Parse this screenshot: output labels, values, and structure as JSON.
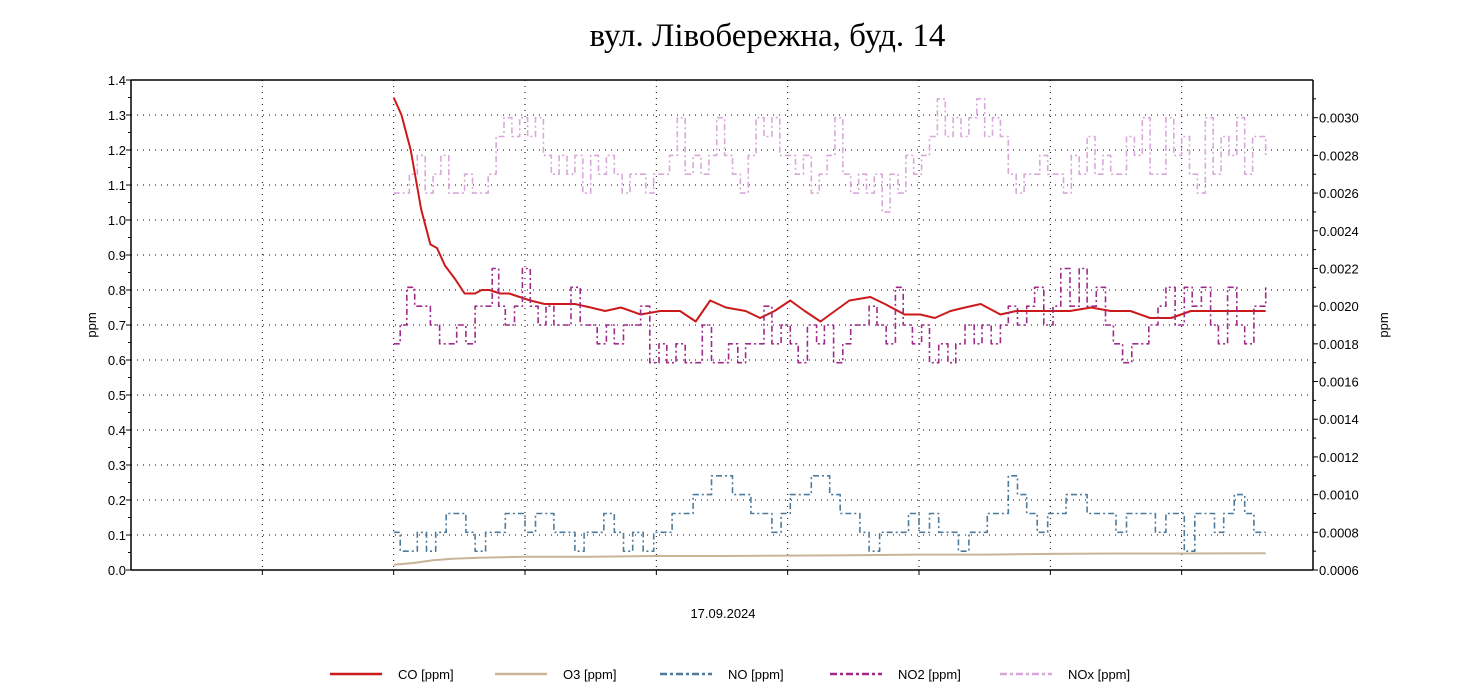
{
  "chart_data": {
    "type": "line",
    "title": "вул. Лівобережна, буд. 14",
    "xlabel": "17.09.2024",
    "ylabel_left": "ppm",
    "ylabel_right": "ppm",
    "x_units": "relative time (gridline intervals)",
    "xlim": [
      0,
      9
    ],
    "ylim_left": [
      0.0,
      1.4
    ],
    "ylim_right": [
      0.0006,
      0.0032
    ],
    "left_ticks": [
      "0.0",
      "0.1",
      "0.2",
      "0.3",
      "0.4",
      "0.5",
      "0.6",
      "0.7",
      "0.8",
      "0.9",
      "1.0",
      "1.1",
      "1.2",
      "1.3",
      "1.4"
    ],
    "right_ticks": [
      "0.0006",
      "0.0008",
      "0.0010",
      "0.0012",
      "0.0014",
      "0.0016",
      "0.0018",
      "0.0020",
      "0.0022",
      "0.0024",
      "0.0026",
      "0.0028",
      "0.0030"
    ],
    "grid": true,
    "legend_position": "bottom",
    "series": [
      {
        "name": "CO [ppm]",
        "axis": "left",
        "color": "#cc1a1a",
        "dash": "solid",
        "x": [
          2.0,
          2.06,
          2.13,
          2.21,
          2.28,
          2.33,
          2.39,
          2.47,
          2.54,
          2.62,
          2.67,
          2.73,
          2.81,
          2.88,
          2.96,
          3.04,
          3.15,
          3.27,
          3.38,
          3.5,
          3.61,
          3.73,
          3.88,
          4.03,
          4.18,
          4.3,
          4.41,
          4.53,
          4.68,
          4.79,
          4.9,
          5.02,
          5.13,
          5.25,
          5.36,
          5.47,
          5.63,
          5.74,
          5.89,
          6.01,
          6.12,
          6.24,
          6.35,
          6.47,
          6.62,
          6.74,
          6.85,
          7.0,
          7.15,
          7.31,
          7.46,
          7.61,
          7.76,
          7.92,
          8.07,
          8.22,
          8.37,
          8.53,
          8.64
        ],
        "values": [
          1.35,
          1.3,
          1.2,
          1.03,
          0.93,
          0.92,
          0.87,
          0.83,
          0.79,
          0.79,
          0.8,
          0.8,
          0.79,
          0.79,
          0.78,
          0.77,
          0.76,
          0.76,
          0.76,
          0.75,
          0.74,
          0.75,
          0.73,
          0.74,
          0.74,
          0.71,
          0.77,
          0.75,
          0.74,
          0.72,
          0.74,
          0.77,
          0.74,
          0.71,
          0.74,
          0.77,
          0.78,
          0.76,
          0.73,
          0.73,
          0.72,
          0.74,
          0.75,
          0.76,
          0.73,
          0.74,
          0.74,
          0.74,
          0.74,
          0.75,
          0.74,
          0.74,
          0.72,
          0.72,
          0.74,
          0.74,
          0.74,
          0.74,
          0.74
        ]
      },
      {
        "name": "O3 [ppm]",
        "axis": "left",
        "color": "#c8b496",
        "dash": "solid",
        "x": [
          2.0,
          2.15,
          2.3,
          2.45,
          2.65,
          3.0,
          3.5,
          4.0,
          4.5,
          5.0,
          5.5,
          6.0,
          6.5,
          7.0,
          7.5,
          8.0,
          8.64
        ],
        "values": [
          0.015,
          0.02,
          0.028,
          0.032,
          0.035,
          0.038,
          0.038,
          0.04,
          0.04,
          0.041,
          0.042,
          0.044,
          0.044,
          0.046,
          0.047,
          0.047,
          0.048
        ]
      },
      {
        "name": "NO [ppm]",
        "axis": "right",
        "color": "#4f7a99",
        "dash": "dashdot",
        "x": [
          2.0,
          2.05,
          2.1,
          2.18,
          2.25,
          2.32,
          2.4,
          2.48,
          2.55,
          2.62,
          2.7,
          2.78,
          2.85,
          2.92,
          3.0,
          3.08,
          3.15,
          3.22,
          3.3,
          3.38,
          3.45,
          3.52,
          3.6,
          3.68,
          3.75,
          3.82,
          3.9,
          3.98,
          4.05,
          4.12,
          4.2,
          4.28,
          4.35,
          4.42,
          4.5,
          4.58,
          4.65,
          4.72,
          4.8,
          4.88,
          4.95,
          5.02,
          5.1,
          5.18,
          5.25,
          5.32,
          5.4,
          5.48,
          5.55,
          5.62,
          5.7,
          5.78,
          5.85,
          5.92,
          6.0,
          6.08,
          6.15,
          6.22,
          6.3,
          6.38,
          6.45,
          6.52,
          6.6,
          6.68,
          6.75,
          6.82,
          6.9,
          6.98,
          7.05,
          7.12,
          7.2,
          7.28,
          7.35,
          7.42,
          7.5,
          7.58,
          7.65,
          7.72,
          7.8,
          7.88,
          7.95,
          8.02,
          8.1,
          8.18,
          8.25,
          8.32,
          8.4,
          8.48,
          8.55,
          8.64
        ],
        "values": [
          0.0008,
          0.0007,
          0.0007,
          0.0008,
          0.0007,
          0.0008,
          0.0009,
          0.0009,
          0.0008,
          0.0007,
          0.0008,
          0.0008,
          0.0009,
          0.0009,
          0.0008,
          0.0009,
          0.0009,
          0.0008,
          0.0008,
          0.0007,
          0.0008,
          0.0008,
          0.0009,
          0.0008,
          0.0007,
          0.0008,
          0.0007,
          0.0008,
          0.0008,
          0.0009,
          0.0009,
          0.001,
          0.001,
          0.0011,
          0.0011,
          0.001,
          0.001,
          0.0009,
          0.0009,
          0.0008,
          0.0009,
          0.001,
          0.001,
          0.0011,
          0.0011,
          0.001,
          0.0009,
          0.0009,
          0.0008,
          0.0007,
          0.0008,
          0.0008,
          0.0008,
          0.0009,
          0.0008,
          0.0009,
          0.0008,
          0.0008,
          0.0007,
          0.0008,
          0.0008,
          0.0009,
          0.0009,
          0.0011,
          0.001,
          0.0009,
          0.0008,
          0.0009,
          0.0009,
          0.001,
          0.001,
          0.0009,
          0.0009,
          0.0009,
          0.0008,
          0.0009,
          0.0009,
          0.0009,
          0.0008,
          0.0009,
          0.0009,
          0.0007,
          0.0009,
          0.0009,
          0.0008,
          0.0009,
          0.001,
          0.0009,
          0.0008,
          0.0008
        ]
      },
      {
        "name": "NO2 [ppm]",
        "axis": "right",
        "color": "#9e2a8a",
        "dash": "dashdot",
        "x": [
          2.0,
          2.05,
          2.1,
          2.16,
          2.22,
          2.28,
          2.35,
          2.42,
          2.48,
          2.55,
          2.62,
          2.68,
          2.75,
          2.8,
          2.85,
          2.92,
          2.98,
          3.04,
          3.1,
          3.16,
          3.22,
          3.28,
          3.35,
          3.42,
          3.48,
          3.55,
          3.62,
          3.68,
          3.75,
          3.82,
          3.88,
          3.95,
          4.02,
          4.08,
          4.15,
          4.22,
          4.28,
          4.35,
          4.42,
          4.48,
          4.55,
          4.62,
          4.68,
          4.75,
          4.82,
          4.88,
          4.95,
          5.02,
          5.08,
          5.15,
          5.22,
          5.28,
          5.35,
          5.42,
          5.48,
          5.55,
          5.62,
          5.68,
          5.75,
          5.82,
          5.88,
          5.95,
          6.02,
          6.08,
          6.15,
          6.22,
          6.28,
          6.35,
          6.42,
          6.48,
          6.55,
          6.62,
          6.68,
          6.75,
          6.82,
          6.88,
          6.95,
          7.02,
          7.08,
          7.15,
          7.22,
          7.28,
          7.35,
          7.42,
          7.48,
          7.55,
          7.62,
          7.68,
          7.75,
          7.82,
          7.88,
          7.95,
          8.02,
          8.08,
          8.15,
          8.22,
          8.28,
          8.35,
          8.42,
          8.48,
          8.55,
          8.64
        ],
        "values": [
          0.0018,
          0.0019,
          0.0021,
          0.002,
          0.002,
          0.0019,
          0.0018,
          0.0018,
          0.0019,
          0.0018,
          0.002,
          0.002,
          0.0022,
          0.002,
          0.0019,
          0.002,
          0.0022,
          0.002,
          0.0019,
          0.002,
          0.0019,
          0.0019,
          0.0021,
          0.0019,
          0.0019,
          0.0018,
          0.0019,
          0.0018,
          0.0019,
          0.0019,
          0.002,
          0.0017,
          0.0018,
          0.0017,
          0.0018,
          0.0017,
          0.0017,
          0.0019,
          0.0017,
          0.0017,
          0.0018,
          0.0017,
          0.0018,
          0.0018,
          0.002,
          0.0018,
          0.0019,
          0.0018,
          0.0017,
          0.0019,
          0.0018,
          0.0019,
          0.0017,
          0.0018,
          0.0019,
          0.0019,
          0.002,
          0.0019,
          0.0018,
          0.0021,
          0.0019,
          0.0018,
          0.0019,
          0.0017,
          0.0018,
          0.0017,
          0.0018,
          0.0019,
          0.0018,
          0.0019,
          0.0018,
          0.0019,
          0.002,
          0.0019,
          0.002,
          0.0021,
          0.0019,
          0.002,
          0.0022,
          0.002,
          0.0022,
          0.002,
          0.0021,
          0.0019,
          0.0018,
          0.0017,
          0.0018,
          0.0018,
          0.0019,
          0.002,
          0.0021,
          0.0019,
          0.0021,
          0.002,
          0.0021,
          0.0019,
          0.0018,
          0.0021,
          0.0019,
          0.0018,
          0.002,
          0.0021
        ]
      },
      {
        "name": "NOx [ppm]",
        "axis": "right",
        "color": "#d8a8d8",
        "dash": "dashdot",
        "x": [
          2.0,
          2.06,
          2.12,
          2.18,
          2.24,
          2.3,
          2.36,
          2.42,
          2.48,
          2.54,
          2.6,
          2.66,
          2.72,
          2.78,
          2.84,
          2.9,
          2.96,
          3.02,
          3.08,
          3.14,
          3.2,
          3.26,
          3.32,
          3.38,
          3.44,
          3.5,
          3.56,
          3.62,
          3.68,
          3.74,
          3.8,
          3.86,
          3.92,
          3.98,
          4.04,
          4.1,
          4.16,
          4.22,
          4.28,
          4.34,
          4.4,
          4.46,
          4.52,
          4.58,
          4.64,
          4.7,
          4.76,
          4.82,
          4.88,
          4.94,
          5.0,
          5.06,
          5.12,
          5.18,
          5.24,
          5.3,
          5.36,
          5.42,
          5.48,
          5.54,
          5.6,
          5.66,
          5.72,
          5.78,
          5.84,
          5.9,
          5.96,
          6.02,
          6.08,
          6.14,
          6.2,
          6.26,
          6.32,
          6.38,
          6.44,
          6.5,
          6.56,
          6.62,
          6.68,
          6.74,
          6.8,
          6.86,
          6.92,
          6.98,
          7.04,
          7.1,
          7.16,
          7.22,
          7.28,
          7.34,
          7.4,
          7.46,
          7.52,
          7.58,
          7.64,
          7.7,
          7.76,
          7.82,
          7.88,
          7.94,
          8.0,
          8.06,
          8.12,
          8.18,
          8.24,
          8.3,
          8.36,
          8.42,
          8.48,
          8.54,
          8.64
        ],
        "values": [
          0.0026,
          0.0026,
          0.0027,
          0.0028,
          0.0026,
          0.0027,
          0.0028,
          0.0026,
          0.0026,
          0.0027,
          0.0026,
          0.0026,
          0.0027,
          0.0029,
          0.003,
          0.0029,
          0.003,
          0.0029,
          0.003,
          0.0028,
          0.0027,
          0.0028,
          0.0027,
          0.0028,
          0.0026,
          0.0028,
          0.0027,
          0.0028,
          0.0027,
          0.0026,
          0.0027,
          0.0027,
          0.0026,
          0.0027,
          0.0027,
          0.0028,
          0.003,
          0.0027,
          0.0028,
          0.0027,
          0.0028,
          0.003,
          0.0028,
          0.0027,
          0.0026,
          0.0028,
          0.003,
          0.0029,
          0.003,
          0.0028,
          0.0028,
          0.0027,
          0.0028,
          0.0026,
          0.0027,
          0.0028,
          0.003,
          0.0027,
          0.0026,
          0.0027,
          0.0026,
          0.0027,
          0.0025,
          0.0027,
          0.0026,
          0.0028,
          0.0027,
          0.0028,
          0.0029,
          0.0031,
          0.0029,
          0.003,
          0.0029,
          0.003,
          0.0031,
          0.0029,
          0.003,
          0.0029,
          0.0027,
          0.0026,
          0.0027,
          0.0027,
          0.0028,
          0.0027,
          0.0027,
          0.0026,
          0.0028,
          0.0027,
          0.0029,
          0.0027,
          0.0028,
          0.0027,
          0.0027,
          0.0029,
          0.0028,
          0.003,
          0.0027,
          0.0027,
          0.003,
          0.0028,
          0.0029,
          0.0027,
          0.0026,
          0.003,
          0.0027,
          0.0029,
          0.0028,
          0.003,
          0.0027,
          0.0029,
          0.0028
        ]
      }
    ]
  }
}
